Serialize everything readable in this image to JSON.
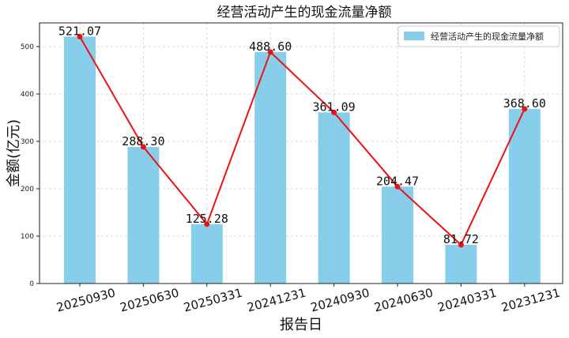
{
  "chart_data": {
    "type": "bar",
    "title": "经营活动产生的现金流量净额",
    "xlabel": "报告日",
    "ylabel": "金额(亿元)",
    "categories": [
      "20250930",
      "20250630",
      "20250331",
      "20241231",
      "20240930",
      "20240630",
      "20240331",
      "20231231"
    ],
    "series": [
      {
        "name": "经营活动产生的现金流量净额",
        "values": [
          521.07,
          288.3,
          125.28,
          488.6,
          361.09,
          204.47,
          81.72,
          368.6
        ],
        "bar_color": "#87CEEB"
      }
    ],
    "data_labels": [
      "521.07",
      "288.30",
      "125.28",
      "488.60",
      "361.09",
      "204.47",
      "81.72",
      "368.60"
    ],
    "line_overlay": {
      "color": "#EE1111"
    },
    "ylim": [
      0,
      550
    ],
    "yticks": [
      0,
      100,
      200,
      300,
      400,
      500
    ],
    "grid": true,
    "legend_position": "top-right"
  }
}
